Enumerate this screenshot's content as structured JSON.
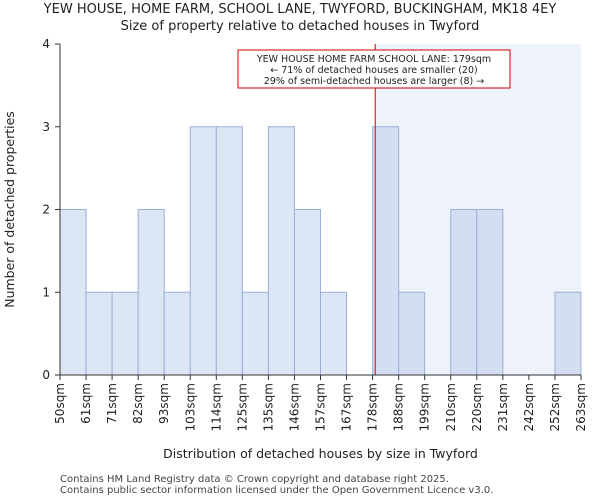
{
  "chart_data": {
    "type": "bar",
    "title": "YEW HOUSE, HOME FARM, SCHOOL LANE, TWYFORD, BUCKINGHAM, MK18 4EY",
    "subtitle": "Size of property relative to detached houses in Twyford",
    "xlabel": "Distribution of detached houses by size in Twyford",
    "ylabel": "Number of detached properties",
    "ylim": [
      0,
      4
    ],
    "yticks": [
      "0",
      "1",
      "2",
      "3",
      "4"
    ],
    "bin_edge_labels": [
      "50sqm",
      "61sqm",
      "71sqm",
      "82sqm",
      "93sqm",
      "103sqm",
      "114sqm",
      "125sqm",
      "135sqm",
      "146sqm",
      "157sqm",
      "167sqm",
      "178sqm",
      "188sqm",
      "199sqm",
      "210sqm",
      "220sqm",
      "231sqm",
      "242sqm",
      "252sqm",
      "263sqm"
    ],
    "values": [
      2,
      1,
      1,
      2,
      1,
      3,
      3,
      1,
      3,
      2,
      1,
      0,
      3,
      1,
      0,
      2,
      2,
      0,
      0,
      1
    ],
    "marker_value": 179,
    "marker_units": "sqm",
    "annotation": {
      "line1": "YEW HOUSE HOME FARM SCHOOL LANE: 179sqm",
      "line2": "← 71% of detached houses are smaller (20)",
      "line3": "29% of semi-detached houses are larger (8) →"
    },
    "colors": {
      "bar_fill": "#dce6f5",
      "bar_fill_right": "#d3def3",
      "bar_stroke": "#9ab0d8",
      "highlight_region": "#eef2fb",
      "marker_line": "#cc0000"
    },
    "grid": false
  },
  "footer": {
    "line1": "Contains HM Land Registry data © Crown copyright and database right 2025.",
    "line2": "Contains public sector information licensed under the Open Government Licence v3.0."
  }
}
